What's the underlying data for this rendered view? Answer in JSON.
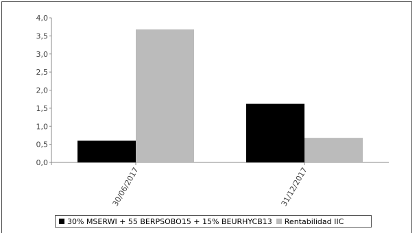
{
  "colors": {
    "background": "#ffffff",
    "frame": "#444444",
    "axis": "#888888",
    "tick_text": "#444444",
    "legend_border": "#555555"
  },
  "chart_data": {
    "type": "bar",
    "categories": [
      "30/06/2017",
      "31/12/2017"
    ],
    "series": [
      {
        "name": "30% MSERWI + 55 BERPSOBO15 + 15% BEURHYCB13",
        "color": "#000000",
        "values": [
          0.6,
          1.62
        ]
      },
      {
        "name": "Rentabilidad IIC",
        "color": "#bbbbbb",
        "values": [
          3.68,
          0.68
        ]
      }
    ],
    "xlabel": "",
    "ylabel": "",
    "ylim": [
      0,
      4
    ],
    "y_ticks": [
      "0,0",
      "0,5",
      "1,0",
      "1,5",
      "2,0",
      "2,5",
      "3,0",
      "3,5",
      "4,0"
    ],
    "grid": false,
    "legend_position": "bottom"
  }
}
